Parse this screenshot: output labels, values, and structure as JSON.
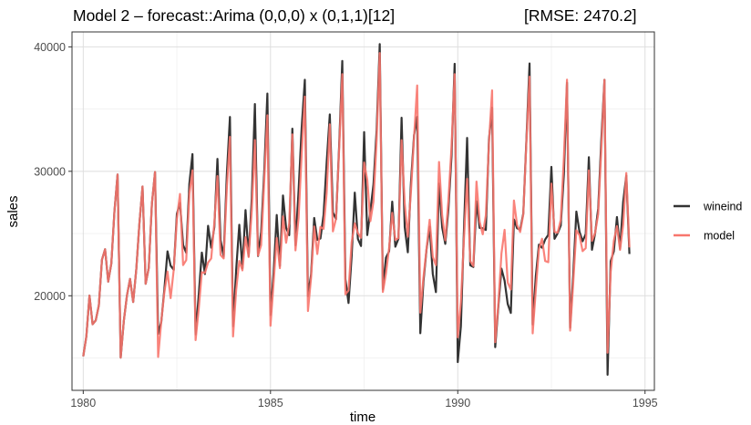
{
  "chart_data": {
    "type": "line",
    "title": "Model 2 – forecast::Arima (0,0,0) x (0,1,1)[12]",
    "subtitle": "[RMSE: 2470.2]",
    "xlabel": "time",
    "ylabel": "sales",
    "xlim": [
      1979.7,
      1995.25
    ],
    "ylim": [
      12400,
      41200
    ],
    "xticks": [
      1980,
      1985,
      1990,
      1995
    ],
    "xtick_labels": [
      "1980",
      "1985",
      "1990",
      "1995"
    ],
    "yticks": [
      20000,
      30000,
      40000
    ],
    "ytick_labels": [
      "20000",
      "30000",
      "40000"
    ],
    "grid": true,
    "legend_position": "right",
    "series": [
      {
        "name": "wineind",
        "color": "#333333",
        "x_start": 1980.0,
        "x_step": 0.08333333,
        "values": [
          15136,
          16733,
          20016,
          17708,
          18019,
          19227,
          22893,
          23739,
          21133,
          22591,
          26786,
          29740,
          15028,
          17977,
          20008,
          21354,
          19498,
          22125,
          25817,
          28779,
          20960,
          22254,
          27392,
          29945,
          16933,
          17892,
          20533,
          23569,
          22417,
          22084,
          26580,
          27454,
          24081,
          23451,
          28991,
          31386,
          16896,
          20045,
          23471,
          21747,
          25621,
          23859,
          25500,
          30998,
          24475,
          23145,
          29701,
          34365,
          17556,
          22077,
          25702,
          22214,
          26886,
          23191,
          27831,
          35406,
          23195,
          25110,
          30009,
          36242,
          18450,
          21845,
          26488,
          22394,
          28057,
          25451,
          24872,
          33424,
          24052,
          28449,
          33533,
          37351,
          19969,
          21701,
          26249,
          24493,
          24603,
          26485,
          30723,
          34569,
          26689,
          26157,
          32064,
          38870,
          21337,
          19419,
          23166,
          28286,
          24570,
          24001,
          33151,
          24878,
          26804,
          28967,
          33311,
          40226,
          20504,
          23060,
          23562,
          27562,
          23940,
          24584,
          34303,
          25517,
          23494,
          29095,
          32903,
          34379,
          16991,
          21109,
          23740,
          25552,
          21752,
          20294,
          29009,
          25500,
          24166,
          26960,
          31222,
          38641,
          14672,
          17543,
          25453,
          32683,
          22449,
          22316,
          27595,
          25451,
          25421,
          25288,
          32568,
          35110,
          15873,
          19142,
          22183,
          21208,
          19346,
          18620,
          26137,
          25425,
          25310,
          26616,
          32574,
          38661,
          17690,
          21543,
          24110,
          23862,
          24519,
          24897,
          30355,
          24574,
          25017,
          25643,
          29766,
          37123,
          17418,
          21701,
          26767,
          25143,
          24380,
          24955,
          31133,
          23695,
          25010,
          27013,
          32549,
          37351,
          13652,
          22784,
          23565,
          26323,
          23779,
          27549,
          29660,
          23356
        ]
      },
      {
        "name": "model",
        "color": "#f8766d",
        "x_start": 1980.0,
        "x_step": 0.08333333,
        "values": [
          15136,
          16733,
          20016,
          17708,
          18019,
          19227,
          22893,
          23739,
          21133,
          22591,
          26786,
          29740,
          15028,
          17977,
          20008,
          21354,
          19498,
          22125,
          25817,
          28779,
          20960,
          22254,
          27392,
          29945,
          15082,
          17935,
          20291,
          21944,
          19807,
          22093,
          26158,
          28181,
          22462,
          22866,
          28197,
          30081,
          16434,
          18923,
          21894,
          21837,
          22671,
          22990,
          25844,
          29612,
          23277,
          23000,
          28580,
          32766,
          16727,
          20467,
          22801,
          22040,
          24708,
          23115,
          26880,
          32513,
          23237,
          24055,
          29309,
          34500,
          17589,
          21116,
          24642,
          22217,
          26382,
          24258,
          25814,
          32968,
          23645,
          26249,
          31422,
          36000,
          18778,
          21448,
          25561,
          23357,
          25529,
          25372,
          28265,
          33777,
          25173,
          26200,
          31770,
          37800,
          20110,
          20428,
          24292,
          25820,
          25040,
          24657,
          30708,
          29327,
          25988,
          27583,
          32537,
          39500,
          20307,
          21790,
          23836,
          26668,
          24488,
          24632,
          32498,
          27422,
          24743,
          28339,
          32720,
          36900,
          18649,
          21449,
          23788,
          26110,
          23120,
          22463,
          30754,
          26461,
          24454,
          27649,
          31971,
          37800,
          16665,
          19495,
          24620,
          29396,
          22785,
          22389,
          29174,
          25956,
          24938,
          26469,
          32270,
          36500,
          16269,
          19318,
          23401,
          25298,
          21066,
          20504,
          27655,
          25690,
          25124,
          26543,
          32422,
          37600,
          16980,
          20430,
          23755,
          24580,
          22792,
          22700,
          29005,
          25132,
          25070,
          26093,
          31094,
          37362,
          17199,
          21065,
          25261,
          24861,
          23586,
          23828,
          30069,
          24413,
          25040,
          26553,
          31821,
          37356,
          15426,
          21924,
          24413,
          25592,
          23683,
          25689,
          29865,
          23885
        ]
      }
    ]
  }
}
